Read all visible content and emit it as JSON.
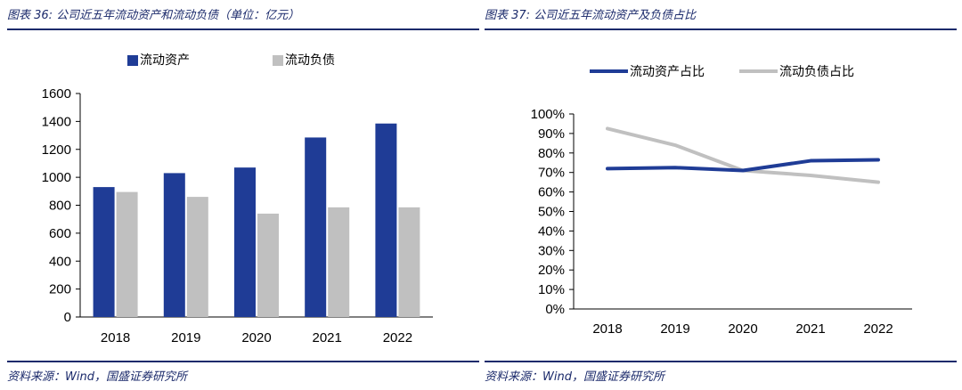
{
  "charts": [
    {
      "caption": "图表 36: 公司近五年流动资产和流动负债（单位：亿元）",
      "source": "资料来源：Wind，国盛证券研究所",
      "colors": {
        "series1": "#1f3c96",
        "series2": "#c0c0c0"
      },
      "chart_data": {
        "type": "bar",
        "categories": [
          "2018",
          "2019",
          "2020",
          "2021",
          "2022"
        ],
        "series": [
          {
            "name": "流动资产",
            "values": [
              930,
              1030,
              1070,
              1285,
              1385
            ]
          },
          {
            "name": "流动负债",
            "values": [
              895,
              860,
              740,
              785,
              785
            ]
          }
        ],
        "ylim": [
          0,
          1600
        ],
        "yticks": [
          "0",
          "200",
          "400",
          "600",
          "800",
          "1000",
          "1200",
          "1400",
          "1600"
        ],
        "legend": "top",
        "grid": false
      }
    },
    {
      "caption": "图表 37: 公司近五年流动资产及负债占比",
      "source": "资料来源：Wind，国盛证券研究所",
      "colors": {
        "series1": "#1f3c96",
        "series2": "#c0c0c0"
      },
      "chart_data": {
        "type": "line",
        "categories": [
          "2018",
          "2019",
          "2020",
          "2021",
          "2022"
        ],
        "series": [
          {
            "name": "流动资产占比",
            "values": [
              0.72,
              0.725,
              0.71,
              0.76,
              0.765
            ]
          },
          {
            "name": "流动负债占比",
            "values": [
              0.925,
              0.84,
              0.71,
              0.685,
              0.65
            ]
          }
        ],
        "ylim": [
          0,
          1
        ],
        "yticks": [
          "0%",
          "10%",
          "20%",
          "30%",
          "40%",
          "50%",
          "60%",
          "70%",
          "80%",
          "90%",
          "100%"
        ],
        "legend": "top",
        "grid": false
      }
    }
  ]
}
